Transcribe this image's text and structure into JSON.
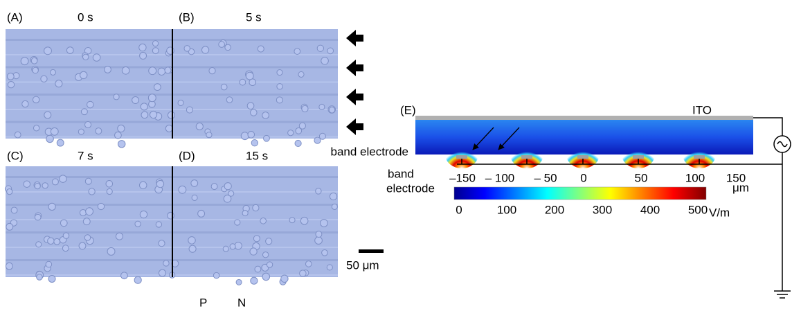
{
  "panels": [
    {
      "label": "(A)",
      "time": "0 s"
    },
    {
      "label": "(B)",
      "time": "5 s"
    },
    {
      "label": "(C)",
      "time": "7 s"
    },
    {
      "label": "(D)",
      "time": "15 s"
    }
  ],
  "scale_bar": "50 μm",
  "polarity": [
    "P",
    "N"
  ],
  "panel_e": {
    "label": "(E)",
    "ito": "ITO",
    "band_electrode_top": "band electrode",
    "band_electrode_left": [
      "band",
      "electrode"
    ],
    "x_axis": {
      "ticks": [
        "–150",
        "– 100",
        "– 50",
        "0",
        "50",
        "100",
        "150"
      ],
      "unit": "μm"
    },
    "colorbar": {
      "ticks": [
        0,
        100,
        200,
        300,
        400,
        500
      ],
      "unit": "V/m"
    }
  }
}
